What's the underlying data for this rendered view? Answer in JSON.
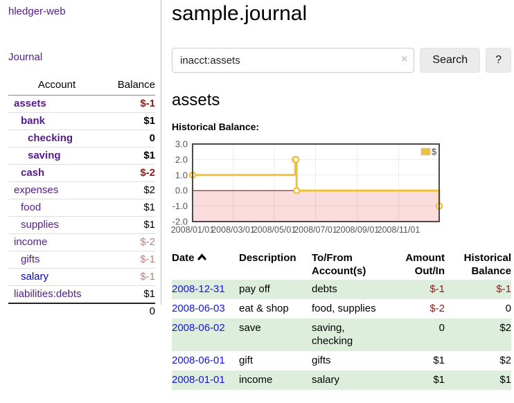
{
  "app": {
    "brand": "hledger-web"
  },
  "sidebar": {
    "nav_journal": "Journal",
    "table": {
      "account_header": "Account",
      "balance_header": "Balance",
      "rows": [
        {
          "account": "assets",
          "balance": "$-1",
          "indent": 1,
          "bold": true,
          "balance_style": "negative",
          "link_style": "purple"
        },
        {
          "account": "bank",
          "balance": "$1",
          "indent": 2,
          "bold": true,
          "balance_style": "normal",
          "link_style": "purple"
        },
        {
          "account": "checking",
          "balance": "0",
          "indent": 3,
          "bold": true,
          "balance_style": "normal",
          "link_style": "purple"
        },
        {
          "account": "saving",
          "balance": "$1",
          "indent": 3,
          "bold": true,
          "balance_style": "normal",
          "link_style": "purple"
        },
        {
          "account": "cash",
          "balance": "$-2",
          "indent": 2,
          "bold": true,
          "balance_style": "negative",
          "link_style": "purple"
        },
        {
          "account": "expenses",
          "balance": "$2",
          "indent": 1,
          "bold": false,
          "balance_style": "normal",
          "link_style": "purple"
        },
        {
          "account": "food",
          "balance": "$1",
          "indent": 2,
          "bold": false,
          "balance_style": "normal",
          "link_style": "purple"
        },
        {
          "account": "supplies",
          "balance": "$1",
          "indent": 2,
          "bold": false,
          "balance_style": "normal",
          "link_style": "purple"
        },
        {
          "account": "income",
          "balance": "$-2",
          "indent": 1,
          "bold": false,
          "balance_style": "negative_dim",
          "link_style": "purple"
        },
        {
          "account": "gifts",
          "balance": "$-1",
          "indent": 2,
          "bold": false,
          "balance_style": "negative_dim",
          "link_style": "purple"
        },
        {
          "account": "salary",
          "balance": "$-1",
          "indent": 2,
          "bold": false,
          "balance_style": "negative_dim",
          "link_style": "blue"
        },
        {
          "account": "liabilities:debts",
          "balance": "$1",
          "indent": 1,
          "bold": false,
          "balance_style": "normal",
          "link_style": "purple"
        }
      ],
      "total": "0"
    }
  },
  "header": {
    "title": "sample.journal"
  },
  "search": {
    "value": "inacct:assets",
    "clear_icon": "×",
    "button": "Search",
    "help_button": "?"
  },
  "account_page": {
    "heading": "assets",
    "chart_label": "Historical Balance:"
  },
  "chart_data": {
    "type": "line",
    "title": "Historical Balance",
    "series": [
      {
        "name": "$",
        "color": "#edc240",
        "steps": true,
        "points": [
          {
            "date": "2008-01-01",
            "day": 0,
            "value": 1
          },
          {
            "date": "2008-06-01",
            "day": 152,
            "value": 2
          },
          {
            "date": "2008-06-02",
            "day": 153,
            "value": 2
          },
          {
            "date": "2008-06-03",
            "day": 154,
            "value": 0
          },
          {
            "date": "2008-12-31",
            "day": 365,
            "value": -1
          }
        ]
      }
    ],
    "x_ticks": [
      {
        "label": "2008/01/01",
        "day": 0
      },
      {
        "label": "2008/03/01",
        "day": 60
      },
      {
        "label": "2008/05/01",
        "day": 121
      },
      {
        "label": "2008/07/01",
        "day": 182
      },
      {
        "label": "2008/09/01",
        "day": 244
      },
      {
        "label": "2008/11/01",
        "day": 305
      }
    ],
    "y_ticks": [
      "3.0",
      "2.0",
      "1.0",
      "0.0",
      "-1.0",
      "-2.0"
    ],
    "xlim_days": [
      0,
      365
    ],
    "ylim": [
      -2,
      3
    ],
    "grid": true,
    "negative_region_shaded": true,
    "legend": {
      "label": "$",
      "position": "top-right"
    },
    "colors": {
      "series": "#edc240",
      "negative_fill": "#fbdcdc",
      "zero_line": "#8b0000",
      "border": "#4a4a4a",
      "grid_line": "rgba(0,0,0,0.08)",
      "tick_text": "#545454"
    }
  },
  "register": {
    "columns": [
      {
        "label": "Date",
        "align": "left",
        "sort": "asc"
      },
      {
        "label": "Description",
        "align": "left"
      },
      {
        "label": "To/From Account(s)",
        "align": "left"
      },
      {
        "label": "Amount Out/In",
        "align": "right"
      },
      {
        "label": "Historical Balance",
        "align": "right"
      }
    ],
    "rows": [
      {
        "date": "2008-12-31",
        "description": "pay off",
        "accounts": "debts",
        "amount": "$-1",
        "balance": "$-1",
        "amount_negative": true,
        "balance_negative": true
      },
      {
        "date": "2008-06-03",
        "description": "eat & shop",
        "accounts": "food, supplies",
        "amount": "$-2",
        "balance": "0",
        "amount_negative": true,
        "balance_negative": false
      },
      {
        "date": "2008-06-02",
        "description": "save",
        "accounts": "saving, checking",
        "amount": "0",
        "balance": "$2",
        "amount_negative": false,
        "balance_negative": false
      },
      {
        "date": "2008-06-01",
        "description": "gift",
        "accounts": "gifts",
        "amount": "$1",
        "balance": "$2",
        "amount_negative": false,
        "balance_negative": false
      },
      {
        "date": "2008-01-01",
        "description": "income",
        "accounts": "salary",
        "amount": "$1",
        "balance": "$1",
        "amount_negative": false,
        "balance_negative": false
      }
    ]
  },
  "colors": {
    "link_purple": "#551a8b",
    "link_blue": "#0000ee",
    "negative_amount": "#8b1a1a",
    "negative_amount_dim": "#bf8080",
    "row_stripe_green": "#ddeedd",
    "date_link_blue": "#1414e0",
    "button_bg": "#ebebeb"
  }
}
